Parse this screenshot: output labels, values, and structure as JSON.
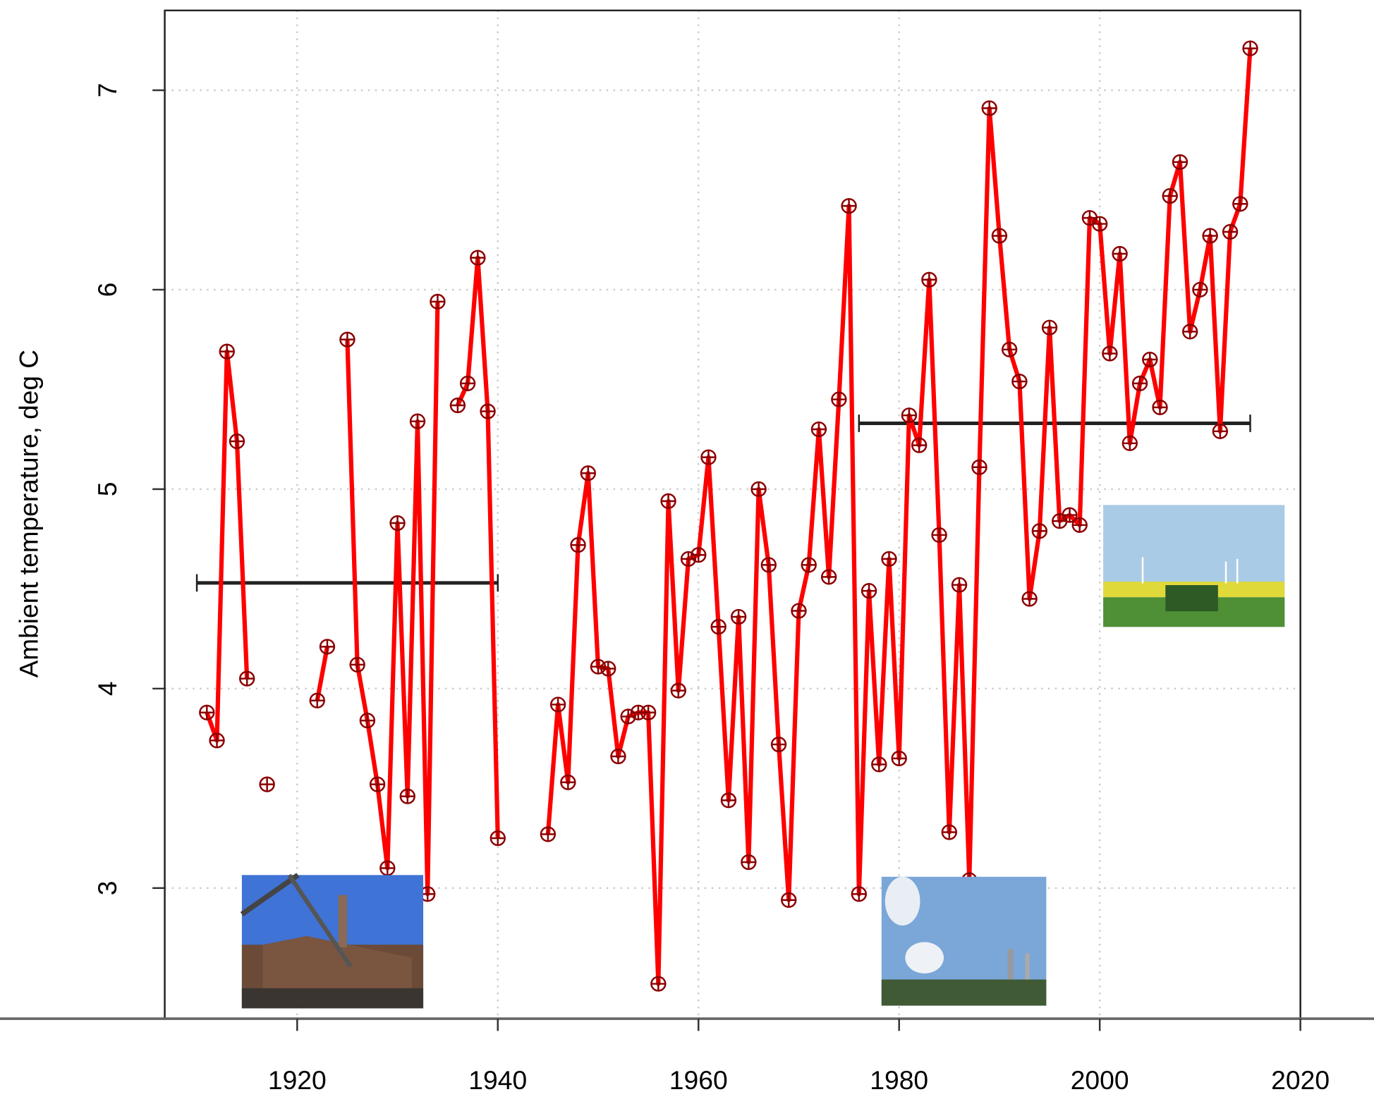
{
  "chart_data": {
    "type": "line",
    "y_label": "Ambient temperature, deg C",
    "x": [
      1911,
      1912,
      1913,
      1914,
      1915,
      1916,
      1917,
      1918,
      1919,
      1920,
      1921,
      1922,
      1923,
      1924,
      1925,
      1926,
      1927,
      1928,
      1929,
      1930,
      1931,
      1932,
      1933,
      1934,
      1935,
      1936,
      1937,
      1938,
      1939,
      1940,
      1941,
      1942,
      1943,
      1944,
      1945,
      1946,
      1947,
      1948,
      1949,
      1950,
      1951,
      1952,
      1953,
      1954,
      1955,
      1956,
      1957,
      1958,
      1959,
      1960,
      1961,
      1962,
      1963,
      1964,
      1965,
      1966,
      1967,
      1968,
      1969,
      1970,
      1971,
      1972,
      1973,
      1974,
      1975,
      1976,
      1977,
      1978,
      1979,
      1980,
      1981,
      1982,
      1983,
      1984,
      1985,
      1986,
      1987,
      1988,
      1989,
      1990,
      1991,
      1992,
      1993,
      1994,
      1995,
      1996,
      1997,
      1998,
      1999,
      2000,
      2001,
      2002,
      2003,
      2004,
      2005,
      2006,
      2007,
      2008,
      2009,
      2010,
      2011,
      2012,
      2013,
      2014,
      2015
    ],
    "series": [
      {
        "color": "#ff0000",
        "marker_color": "#8b0000",
        "values": [
          3.88,
          3.74,
          5.69,
          5.24,
          4.05,
          null,
          3.52,
          null,
          null,
          null,
          null,
          3.94,
          4.21,
          null,
          5.75,
          4.12,
          3.84,
          3.52,
          3.1,
          4.83,
          3.46,
          5.34,
          2.97,
          5.94,
          null,
          5.42,
          5.53,
          6.16,
          5.39,
          3.25,
          null,
          null,
          null,
          null,
          3.27,
          3.92,
          3.53,
          4.72,
          5.08,
          4.11,
          4.1,
          3.66,
          3.86,
          3.88,
          3.88,
          2.52,
          4.94,
          3.99,
          4.65,
          4.67,
          5.16,
          4.31,
          3.44,
          4.36,
          3.13,
          5.0,
          4.62,
          3.72,
          2.94,
          4.39,
          4.62,
          5.3,
          4.56,
          5.45,
          6.42,
          2.97,
          4.49,
          3.62,
          4.65,
          3.65,
          5.37,
          5.22,
          6.05,
          4.77,
          3.28,
          4.52,
          3.04,
          5.11,
          6.91,
          6.27,
          5.7,
          5.54,
          4.45,
          4.79,
          5.81,
          4.84,
          4.87,
          4.82,
          6.36,
          6.33,
          5.68,
          6.18,
          5.23,
          5.53,
          5.65,
          5.41,
          6.47,
          6.64,
          5.79,
          6.0,
          6.27,
          5.29,
          6.29,
          6.43,
          7.21
        ]
      }
    ],
    "mean_lines": [
      {
        "x": [
          1910,
          1940
        ],
        "y": 4.53
      },
      {
        "x": [
          1976,
          2015
        ],
        "y": 5.33
      }
    ],
    "mean_color": "#222222",
    "xlim": [
      1906.8,
      2020
    ],
    "xticks": [
      1920,
      1940,
      1960,
      1980,
      2000,
      2020
    ],
    "ylim": [
      2.345,
      7.4
    ],
    "yticks": [
      3,
      4,
      5,
      6,
      7
    ],
    "grid": true
  }
}
